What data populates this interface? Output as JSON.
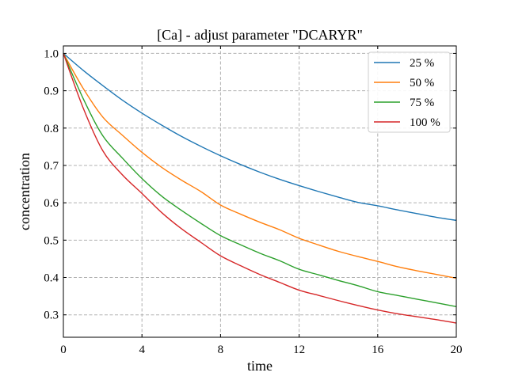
{
  "chart_data": {
    "type": "line",
    "title": "[Ca] - adjust parameter \"DCARYR\"",
    "xlabel": "time",
    "ylabel": "concentration",
    "xlim": [
      0,
      20
    ],
    "ylim": [
      0.24,
      1.02
    ],
    "xticks": [
      0,
      4,
      8,
      12,
      16,
      20
    ],
    "xtick_labels": [
      "0",
      "4",
      "8",
      "12",
      "16",
      "20"
    ],
    "yticks": [
      0.3,
      0.4,
      0.5,
      0.6,
      0.7,
      0.8,
      0.9,
      1.0
    ],
    "ytick_labels": [
      "0.3",
      "0.4",
      "0.5",
      "0.6",
      "0.7",
      "0.8",
      "0.9",
      "1.0"
    ],
    "grid": true,
    "grid_style": "dashed",
    "legend_position": "top-right",
    "x": [
      0,
      1,
      2,
      3,
      4,
      5,
      6,
      7,
      8,
      9,
      10,
      11,
      12,
      13,
      14,
      15,
      16,
      17,
      18,
      19,
      20
    ],
    "series": [
      {
        "name": "25 %",
        "color": "#1f77b4",
        "values": [
          1.0,
          0.955,
          0.914,
          0.875,
          0.84,
          0.808,
          0.778,
          0.751,
          0.726,
          0.703,
          0.682,
          0.663,
          0.646,
          0.63,
          0.615,
          0.601,
          0.592,
          0.581,
          0.571,
          0.561,
          0.553
        ]
      },
      {
        "name": "50 %",
        "color": "#ff7f0e",
        "values": [
          1.0,
          0.907,
          0.83,
          0.781,
          0.735,
          0.695,
          0.661,
          0.63,
          0.594,
          0.57,
          0.548,
          0.528,
          0.505,
          0.487,
          0.47,
          0.456,
          0.443,
          0.429,
          0.418,
          0.408,
          0.398
        ]
      },
      {
        "name": "75 %",
        "color": "#2ca02c",
        "values": [
          1.0,
          0.88,
          0.78,
          0.72,
          0.665,
          0.618,
          0.58,
          0.545,
          0.512,
          0.488,
          0.465,
          0.445,
          0.422,
          0.407,
          0.392,
          0.378,
          0.362,
          0.352,
          0.342,
          0.332,
          0.322
        ]
      },
      {
        "name": "100 %",
        "color": "#d62728",
        "values": [
          1.0,
          0.855,
          0.74,
          0.675,
          0.625,
          0.574,
          0.531,
          0.494,
          0.458,
          0.432,
          0.408,
          0.387,
          0.366,
          0.352,
          0.338,
          0.325,
          0.313,
          0.303,
          0.295,
          0.287,
          0.278
        ]
      }
    ]
  }
}
